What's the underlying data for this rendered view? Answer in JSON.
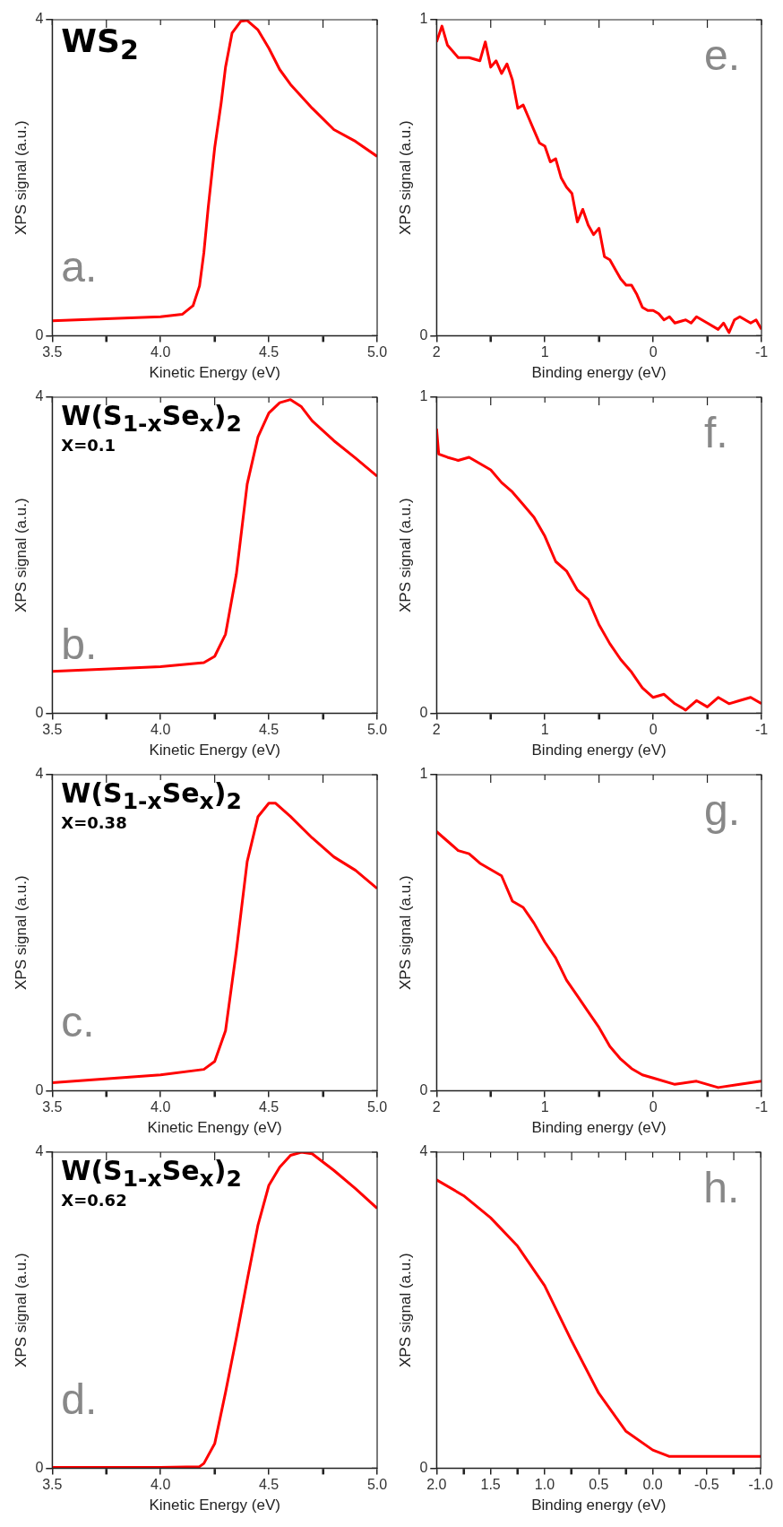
{
  "chart_data": [
    {
      "type": "line",
      "xlabel": "Kinetic Energy (eV)",
      "ylabel": "XPS signal (a.u.)",
      "annotations": [
        "WS$_{2}$",
        "a."
      ],
      "xlim": [
        3.5,
        5.0
      ],
      "xticks": [
        3.5,
        {
          "value": 3.75,
          "label": null
        },
        {
          "value": 4,
          "label": "4.0"
        },
        {
          "value": 4.25,
          "label": null
        },
        4.5,
        {
          "value": 4.75,
          "label": null
        },
        {
          "value": 5,
          "label": "5.0"
        }
      ],
      "ylim": [
        0,
        4
      ],
      "yticks": [
        0,
        4
      ],
      "grid": false,
      "legend": false,
      "marker": "none",
      "line_style": "solid",
      "series": [
        {
          "color": "#ff0000",
          "x": [
            3.5,
            4.0,
            4.1,
            4.15,
            4.18,
            4.2,
            4.22,
            4.25,
            4.28,
            4.3,
            4.33,
            4.37,
            4.4,
            4.45,
            4.5,
            4.55,
            4.6,
            4.7,
            4.8,
            4.9,
            5.0
          ],
          "values": [
            0.19,
            0.24,
            0.27,
            0.38,
            0.63,
            1.05,
            1.62,
            2.38,
            2.95,
            3.4,
            3.83,
            3.98,
            3.99,
            3.87,
            3.64,
            3.37,
            3.18,
            2.88,
            2.61,
            2.46,
            2.27
          ]
        }
      ]
    },
    {
      "type": "line",
      "xlabel": "Kinetic Energy (eV)",
      "ylabel": "XPS signal (a.u.)",
      "annotations": [
        "W(S$_{1-x}$Se$_{x}$)$_{2}$",
        "X=0.1",
        "b."
      ],
      "xlim": [
        3.5,
        5.0
      ],
      "xticks": [
        3.5,
        {
          "value": 3.75,
          "label": null
        },
        {
          "value": 4,
          "label": "4.0"
        },
        {
          "value": 4.25,
          "label": null
        },
        4.5,
        {
          "value": 4.75,
          "label": null
        },
        {
          "value": 5,
          "label": "5.0"
        }
      ],
      "ylim": [
        0,
        4
      ],
      "yticks": [
        0,
        4
      ],
      "grid": false,
      "legend": false,
      "marker": "none",
      "line_style": "solid",
      "series": [
        {
          "color": "#ff0000",
          "x": [
            3.5,
            4.0,
            4.2,
            4.25,
            4.3,
            4.35,
            4.4,
            4.45,
            4.5,
            4.55,
            4.6,
            4.65,
            4.7,
            4.8,
            4.9,
            5.0
          ],
          "values": [
            0.53,
            0.59,
            0.64,
            0.72,
            1.0,
            1.76,
            2.9,
            3.5,
            3.8,
            3.93,
            3.97,
            3.88,
            3.7,
            3.45,
            3.23,
            3.0
          ]
        }
      ]
    },
    {
      "type": "line",
      "xlabel": "Kinetic Enengy (eV)",
      "ylabel": "XPS signal (a.u.)",
      "annotations": [
        "W(S$_{1-x}$Se$_{x}$)$_{2}$",
        "X=0.38",
        "c."
      ],
      "xlim": [
        3.5,
        5.0
      ],
      "xticks": [
        3.5,
        {
          "value": 3.75,
          "label": null
        },
        {
          "value": 4,
          "label": "4.0"
        },
        {
          "value": 4.25,
          "label": null
        },
        4.5,
        {
          "value": 4.75,
          "label": null
        },
        {
          "value": 5,
          "label": "5.0"
        }
      ],
      "ylim": [
        0,
        4
      ],
      "yticks": [
        0,
        4
      ],
      "grid": false,
      "legend": false,
      "marker": "none",
      "line_style": "solid",
      "series": [
        {
          "color": "#ff0000",
          "x": [
            3.5,
            4.0,
            4.2,
            4.25,
            4.3,
            4.35,
            4.4,
            4.45,
            4.5,
            4.53,
            4.6,
            4.7,
            4.8,
            4.9,
            5.0
          ],
          "values": [
            0.1,
            0.2,
            0.27,
            0.37,
            0.76,
            1.77,
            2.9,
            3.47,
            3.64,
            3.64,
            3.47,
            3.2,
            2.96,
            2.79,
            2.56
          ]
        }
      ]
    },
    {
      "type": "line",
      "xlabel": "Kinetic Energy (eV)",
      "ylabel": "XPS signal (a.u.)",
      "annotations": [
        "W(S$_{1-x}$Se$_{x}$)$_{2}$",
        "X=0.62",
        "d."
      ],
      "xlim": [
        3.5,
        5.0
      ],
      "xticks": [
        3.5,
        {
          "value": 3.75,
          "label": null
        },
        {
          "value": 4,
          "label": "4.0"
        },
        {
          "value": 4.25,
          "label": null
        },
        4.5,
        {
          "value": 4.75,
          "label": null
        },
        {
          "value": 5,
          "label": "5.0"
        }
      ],
      "ylim": [
        0,
        4
      ],
      "yticks": [
        0,
        4
      ],
      "grid": false,
      "legend": false,
      "marker": "none",
      "line_style": "solid",
      "series": [
        {
          "color": "#ff0000",
          "x": [
            3.5,
            4.0,
            4.18,
            4.2,
            4.25,
            4.3,
            4.35,
            4.4,
            4.45,
            4.5,
            4.55,
            4.6,
            4.65,
            4.7,
            4.8,
            4.9,
            5.0
          ],
          "values": [
            0.01,
            0.01,
            0.02,
            0.06,
            0.31,
            0.96,
            1.65,
            2.38,
            3.08,
            3.58,
            3.81,
            3.96,
            4.0,
            3.98,
            3.77,
            3.54,
            3.29
          ]
        }
      ]
    },
    {
      "type": "line",
      "xlabel": "Binding energy (eV)",
      "ylabel": "XPS signal (a.u.)",
      "annotations": [
        "e."
      ],
      "xlim": [
        2,
        -1
      ],
      "xticks": [
        2,
        {
          "value": 1.5,
          "label": null
        },
        1,
        {
          "value": 0.5,
          "label": null
        },
        0,
        {
          "value": -0.5,
          "label": null
        },
        -1
      ],
      "ylim": [
        0,
        1
      ],
      "yticks": [
        0,
        1
      ],
      "grid": false,
      "legend": false,
      "marker": "none",
      "line_style": "solid",
      "series": [
        {
          "color": "#ff0000",
          "x": [
            2.0,
            1.95,
            1.9,
            1.8,
            1.7,
            1.6,
            1.55,
            1.5,
            1.45,
            1.4,
            1.35,
            1.3,
            1.25,
            1.2,
            1.15,
            1.1,
            1.05,
            1.0,
            0.95,
            0.9,
            0.85,
            0.8,
            0.75,
            0.7,
            0.65,
            0.6,
            0.55,
            0.5,
            0.45,
            0.4,
            0.35,
            0.3,
            0.25,
            0.2,
            0.15,
            0.1,
            0.05,
            0.0,
            -0.05,
            -0.1,
            -0.15,
            -0.2,
            -0.3,
            -0.35,
            -0.4,
            -0.5,
            -0.6,
            -0.65,
            -0.7,
            -0.75,
            -0.8,
            -0.9,
            -0.95,
            -1.0
          ],
          "values": [
            0.93,
            0.98,
            0.92,
            0.88,
            0.88,
            0.87,
            0.93,
            0.85,
            0.87,
            0.83,
            0.86,
            0.81,
            0.72,
            0.73,
            0.69,
            0.65,
            0.61,
            0.6,
            0.55,
            0.56,
            0.5,
            0.47,
            0.45,
            0.36,
            0.4,
            0.35,
            0.32,
            0.34,
            0.25,
            0.24,
            0.21,
            0.18,
            0.16,
            0.16,
            0.13,
            0.09,
            0.08,
            0.08,
            0.07,
            0.05,
            0.06,
            0.04,
            0.05,
            0.04,
            0.06,
            0.04,
            0.02,
            0.04,
            0.01,
            0.05,
            0.06,
            0.04,
            0.05,
            0.02
          ]
        }
      ]
    },
    {
      "type": "line",
      "xlabel": "Binding energy (eV)",
      "ylabel": "XPS signal (a.u.)",
      "annotations": [
        "f."
      ],
      "xlim": [
        2,
        -1
      ],
      "xticks": [
        2,
        {
          "value": 1.5,
          "label": null
        },
        1,
        {
          "value": 0.5,
          "label": null
        },
        0,
        {
          "value": -0.5,
          "label": null
        },
        -1
      ],
      "ylim": [
        0,
        1
      ],
      "yticks": [
        0,
        1
      ],
      "grid": false,
      "legend": false,
      "marker": "none",
      "line_style": "solid",
      "series": [
        {
          "color": "#ff0000",
          "x": [
            2.0,
            1.98,
            1.9,
            1.8,
            1.7,
            1.6,
            1.5,
            1.4,
            1.3,
            1.2,
            1.1,
            1.0,
            0.9,
            0.8,
            0.7,
            0.6,
            0.5,
            0.4,
            0.3,
            0.2,
            0.1,
            0.0,
            -0.1,
            -0.2,
            -0.3,
            -0.4,
            -0.5,
            -0.6,
            -0.7,
            -0.8,
            -0.9,
            -1.0
          ],
          "values": [
            0.9,
            0.82,
            0.81,
            0.8,
            0.81,
            0.79,
            0.77,
            0.73,
            0.7,
            0.66,
            0.62,
            0.56,
            0.48,
            0.45,
            0.39,
            0.36,
            0.28,
            0.22,
            0.17,
            0.13,
            0.08,
            0.05,
            0.06,
            0.03,
            0.01,
            0.04,
            0.02,
            0.05,
            0.03,
            0.04,
            0.05,
            0.03
          ]
        }
      ]
    },
    {
      "type": "line",
      "xlabel": "Binding energy (eV)",
      "ylabel": "XPS signal (a.u.)",
      "annotations": [
        "g."
      ],
      "xlim": [
        2,
        -1
      ],
      "xticks": [
        2,
        {
          "value": 1.5,
          "label": null
        },
        1,
        {
          "value": 0.5,
          "label": null
        },
        0,
        {
          "value": -0.5,
          "label": null
        },
        -1
      ],
      "ylim": [
        0,
        1
      ],
      "yticks": [
        0,
        1
      ],
      "grid": false,
      "legend": false,
      "marker": "none",
      "line_style": "solid",
      "series": [
        {
          "color": "#ff0000",
          "x": [
            2.0,
            1.9,
            1.8,
            1.7,
            1.6,
            1.5,
            1.4,
            1.3,
            1.2,
            1.1,
            1.0,
            0.9,
            0.8,
            0.7,
            0.6,
            0.5,
            0.4,
            0.3,
            0.2,
            0.1,
            0.0,
            -0.2,
            -0.4,
            -0.6,
            -0.8,
            -1.0
          ],
          "values": [
            0.82,
            0.79,
            0.76,
            0.75,
            0.72,
            0.7,
            0.68,
            0.6,
            0.58,
            0.53,
            0.47,
            0.42,
            0.35,
            0.3,
            0.25,
            0.2,
            0.14,
            0.1,
            0.07,
            0.05,
            0.04,
            0.02,
            0.03,
            0.01,
            0.02,
            0.03
          ]
        }
      ]
    },
    {
      "type": "line",
      "xlabel": "Binding energy (eV)",
      "ylabel": "XPS signal (a.u.)",
      "annotations": [
        "h."
      ],
      "xlim": [
        2,
        -1
      ],
      "xticks": [
        {
          "value": 2,
          "label": "2.0"
        },
        {
          "value": 1.75,
          "label": null
        },
        1.5,
        {
          "value": 1.25,
          "label": null
        },
        {
          "value": 1,
          "label": "1.0"
        },
        {
          "value": 0.75,
          "label": null
        },
        0.5,
        {
          "value": 0.25,
          "label": null
        },
        {
          "value": 0,
          "label": "0.0"
        },
        {
          "value": -0.25,
          "label": null
        },
        -0.5,
        {
          "value": -0.75,
          "label": null
        },
        {
          "value": -1,
          "label": "-1.0"
        }
      ],
      "ylim": [
        0,
        4
      ],
      "yticks": [
        0,
        4
      ],
      "grid": false,
      "legend": false,
      "marker": "none",
      "line_style": "solid",
      "series": [
        {
          "color": "#ff0000",
          "x": [
            2.0,
            1.75,
            1.5,
            1.25,
            1.0,
            0.75,
            0.5,
            0.25,
            0.0,
            -0.15,
            -1.0
          ],
          "values": [
            3.65,
            3.45,
            3.17,
            2.81,
            2.31,
            1.61,
            0.95,
            0.47,
            0.23,
            0.15,
            0.15
          ]
        }
      ]
    }
  ]
}
